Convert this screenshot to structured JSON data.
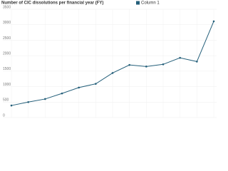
{
  "chart_data": {
    "type": "line",
    "title": "Number of CIC dissolutions per financial year (FY)",
    "categories": [
      null,
      null,
      null,
      null,
      null,
      null,
      null,
      null,
      null,
      null,
      null,
      null,
      null
    ],
    "series": [
      {
        "name": "Column 1",
        "color": "#245f7a",
        "values": [
          390,
          500,
          600,
          780,
          970,
          1090,
          1440,
          1700,
          1650,
          1720,
          1930,
          1810,
          3110
        ]
      }
    ],
    "ylim": [
      0,
      3500
    ],
    "yticks": [
      0,
      500,
      1000,
      1500,
      2000,
      2500,
      3000,
      3500
    ],
    "grid": true
  }
}
